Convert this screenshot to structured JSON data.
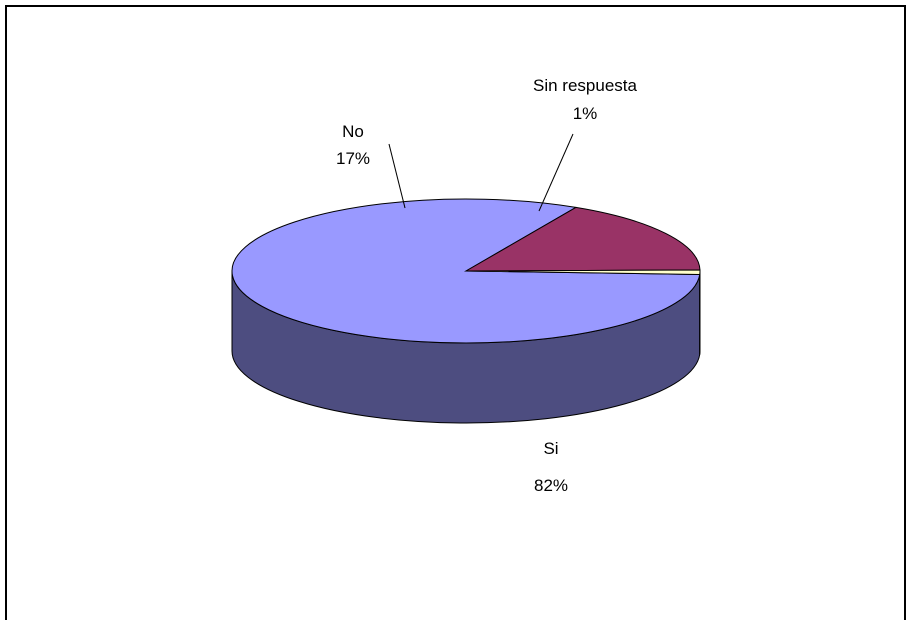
{
  "chart_data": {
    "type": "pie",
    "title": "",
    "three_d": true,
    "slices": [
      {
        "label": "Si",
        "value": 82,
        "percent_label": "82%",
        "color": "#9999FF",
        "side_color": "#4D4D80"
      },
      {
        "label": "No",
        "value": 17,
        "percent_label": "17%",
        "color": "#993366",
        "side_color": "#4D1A33"
      },
      {
        "label": "Sin respuesta",
        "value": 1,
        "percent_label": "1%",
        "color": "#FFFFCC",
        "side_color": "#808066"
      }
    ]
  }
}
